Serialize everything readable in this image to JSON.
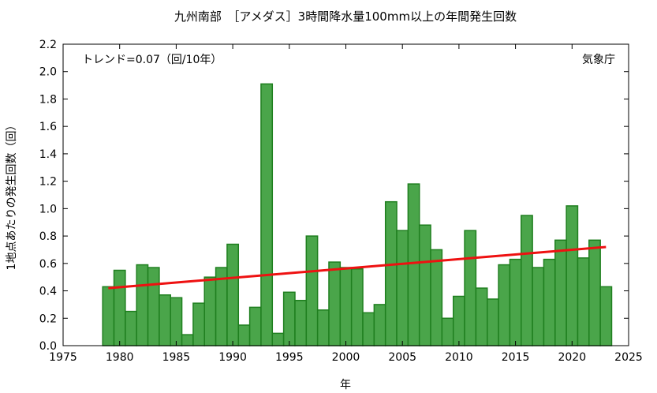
{
  "chart_data": {
    "type": "bar",
    "title": "九州南部　［アメダス］3時間降水量100mm以上の年間発生回数",
    "xlabel": "年",
    "ylabel": "1地点あたりの発生回数（回）",
    "annotation_trend": "トレンド=0.07（回/10年）",
    "annotation_source": "気象庁",
    "xlim": [
      1975,
      2025
    ],
    "ylim": [
      0,
      2.2
    ],
    "x_ticks": [
      "1975",
      "1980",
      "1985",
      "1990",
      "1995",
      "2000",
      "2005",
      "2010",
      "2015",
      "2020",
      "2025"
    ],
    "y_ticks": [
      "0.0",
      "0.2",
      "0.4",
      "0.6",
      "0.8",
      "1.0",
      "1.2",
      "1.4",
      "1.6",
      "1.8",
      "2.0",
      "2.2"
    ],
    "grid": false,
    "years": [
      1979,
      1980,
      1981,
      1982,
      1983,
      1984,
      1985,
      1986,
      1987,
      1988,
      1989,
      1990,
      1991,
      1992,
      1993,
      1994,
      1995,
      1996,
      1997,
      1998,
      1999,
      2000,
      2001,
      2002,
      2003,
      2004,
      2005,
      2006,
      2007,
      2008,
      2009,
      2010,
      2011,
      2012,
      2013,
      2014,
      2015,
      2016,
      2017,
      2018,
      2019,
      2020,
      2021,
      2022,
      2023
    ],
    "values": [
      0.43,
      0.55,
      0.25,
      0.59,
      0.57,
      0.37,
      0.35,
      0.08,
      0.31,
      0.5,
      0.57,
      0.74,
      0.15,
      0.28,
      1.91,
      0.09,
      0.39,
      0.33,
      0.8,
      0.26,
      0.61,
      0.57,
      0.56,
      0.24,
      0.3,
      1.05,
      0.84,
      1.18,
      0.88,
      0.7,
      0.2,
      0.36,
      0.84,
      0.42,
      0.34,
      0.59,
      0.63,
      0.95,
      0.57,
      0.63,
      0.77,
      1.02,
      0.64,
      0.77,
      0.43
    ],
    "trend": {
      "x": [
        1979,
        2023
      ],
      "y": [
        0.42,
        0.72
      ]
    },
    "colors": {
      "bar_fill": "#4aa54a",
      "bar_stroke": "#1f7f1f",
      "trend": "#ee1111"
    }
  }
}
